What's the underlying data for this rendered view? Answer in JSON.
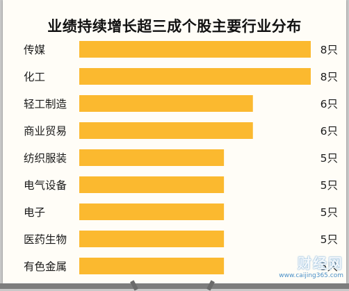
{
  "chart_data": {
    "type": "bar",
    "orientation": "horizontal",
    "title": "业绩持续增长超三成个股主要行业分布",
    "categories": [
      "传媒",
      "化工",
      "轻工制造",
      "商业贸易",
      "纺织服装",
      "电气设备",
      "电子",
      "医药生物",
      "有色金属"
    ],
    "values": [
      8,
      8,
      6,
      6,
      5,
      5,
      5,
      5,
      5
    ],
    "value_labels": [
      "8只",
      "8只",
      "6只",
      "6只",
      "5只",
      "5只",
      "5只",
      "5只",
      "5只"
    ],
    "xlim": [
      0,
      8
    ],
    "bar_color": "#fbb92f",
    "grid": false,
    "legend": "none"
  },
  "watermark": {
    "text": "财经网",
    "url_text": "www.caijing365.com"
  }
}
